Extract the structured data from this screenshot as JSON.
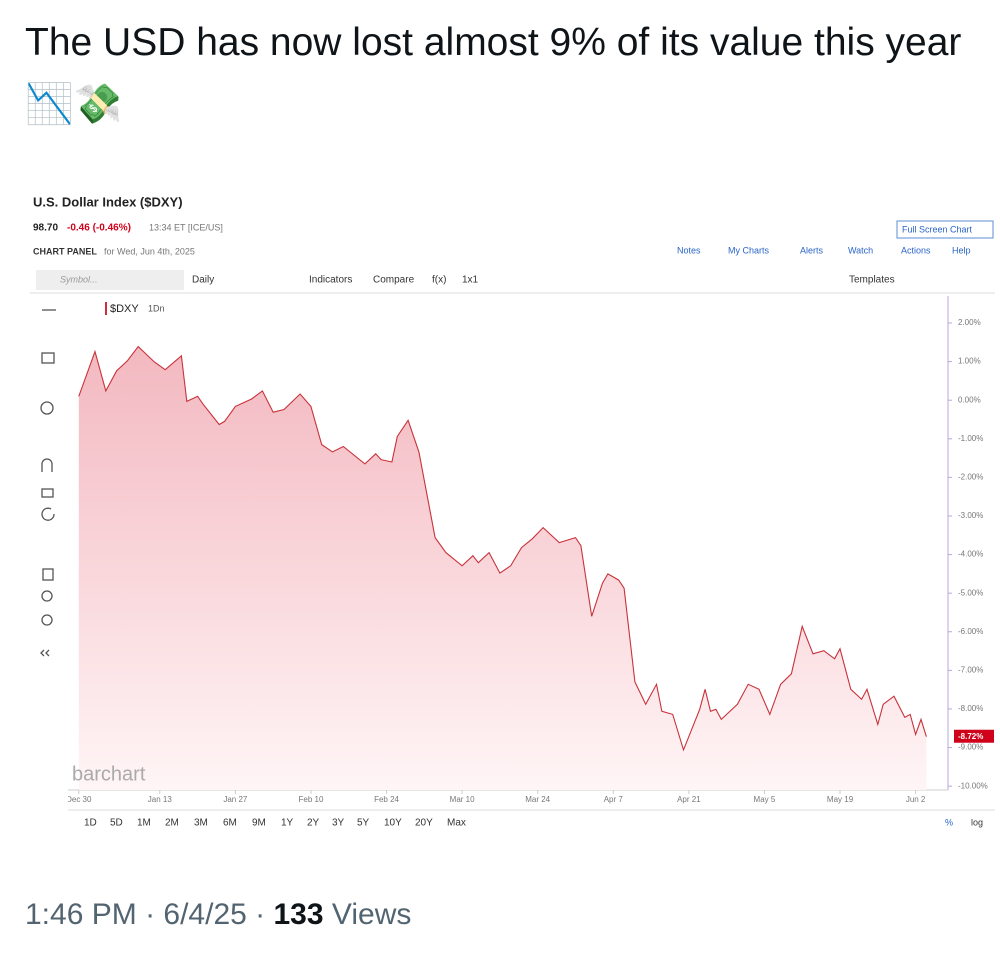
{
  "tweet": {
    "text": "The USD has now lost almost 9% of its value this year 📉💸",
    "time": "1:46 PM",
    "date": "6/4/25",
    "views": "133",
    "views_label": "Views"
  },
  "panel": {
    "title": "U.S. Dollar Index ($DXY)",
    "last": "98.70",
    "change": "-0.46 (-0.46%)",
    "timestamp": "13:34 ET [ICE/US]",
    "panel_label": "CHART PANEL",
    "panel_date": "for Wed, Jun 4th, 2025",
    "full_screen": "Full Screen Chart",
    "menu": [
      "Notes",
      "My Charts",
      "Alerts",
      "Watch",
      "Actions",
      "Help"
    ],
    "symbol_placeholder": "Symbol...",
    "toolbar": [
      "Daily",
      "Indicators",
      "Compare",
      "f(x)",
      "1x1"
    ],
    "templates": "Templates",
    "interval": "1Dn",
    "watermark": "barchart",
    "ranges": [
      "1D",
      "5D",
      "1M",
      "2M",
      "3M",
      "6M",
      "9M",
      "1Y",
      "2Y",
      "3Y",
      "5Y",
      "10Y",
      "20Y",
      "Max"
    ],
    "percent_toggle": "%",
    "log_toggle": "log"
  },
  "chart_data": {
    "type": "area",
    "x": [
      "Dec 30",
      "Jan 1",
      "Jan 3",
      "Jan 5",
      "Jan 7",
      "Jan 9",
      "Jan 12",
      "Jan 14",
      "Jan 17",
      "Jan 18",
      "Jan 20",
      "Jan 21",
      "Jan 24",
      "Jan 25",
      "Jan 27",
      "Jan 30",
      "Feb 1",
      "Feb 3",
      "Feb 5",
      "Feb 8",
      "Feb 10",
      "Feb 12",
      "Feb 14",
      "Feb 16",
      "Feb 20",
      "Feb 22",
      "Feb 23",
      "Feb 25",
      "Feb 26",
      "Feb 28",
      "Mar 2",
      "Mar 5",
      "Mar 7",
      "Mar 10",
      "Mar 12",
      "Mar 13",
      "Mar 15",
      "Mar 17",
      "Mar 19",
      "Mar 21",
      "Mar 23",
      "Mar 25",
      "Mar 28",
      "Mar 31",
      "Apr 1",
      "Apr 3",
      "Apr 5",
      "Apr 6",
      "Apr 8",
      "Apr 9",
      "Apr 11",
      "Apr 13",
      "Apr 15",
      "Apr 16",
      "Apr 18",
      "Apr 20",
      "Apr 23",
      "Apr 24",
      "Apr 25",
      "Apr 26",
      "Apr 27",
      "Apr 30",
      "May 2",
      "May 4",
      "May 6",
      "May 8",
      "May 10",
      "May 12",
      "May 14",
      "May 16",
      "May 18",
      "May 19",
      "May 21",
      "May 23",
      "May 24",
      "May 26",
      "May 27",
      "May 29",
      "May 31",
      "Jun 1",
      "Jun 2",
      "Jun 3",
      "Jun 4"
    ],
    "series": [
      {
        "name": "$DXY",
        "color": "#c8323a",
        "values": [
          0.1,
          1.26,
          0.24,
          0.76,
          1.02,
          1.39,
          0.99,
          0.79,
          1.15,
          -0.03,
          0.1,
          -0.1,
          -0.63,
          -0.55,
          -0.16,
          0.03,
          0.24,
          -0.31,
          -0.24,
          0.16,
          -0.16,
          -1.15,
          -1.34,
          -1.2,
          -1.65,
          -1.39,
          -1.54,
          -1.6,
          -0.94,
          -0.52,
          -1.34,
          -3.56,
          -3.95,
          -4.29,
          -4.03,
          -4.21,
          -3.95,
          -4.48,
          -4.29,
          -3.82,
          -3.59,
          -3.3,
          -3.69,
          -3.56,
          -3.77,
          -5.6,
          -4.74,
          -4.5,
          -4.66,
          -4.87,
          -7.3,
          -7.88,
          -7.36,
          -8.06,
          -8.14,
          -9.06,
          -8.01,
          -7.49,
          -8.06,
          -8.01,
          -8.27,
          -7.88,
          -7.36,
          -7.49,
          -8.14,
          -7.36,
          -7.09,
          -5.86,
          -6.57,
          -6.49,
          -6.7,
          -6.44,
          -7.49,
          -7.75,
          -7.49,
          -8.4,
          -7.88,
          -7.67,
          -8.22,
          -8.14,
          -8.66,
          -8.27,
          -8.72
        ]
      }
    ],
    "last_label": "-8.72%",
    "xlim": [
      "Dec 28",
      "Jun 8"
    ],
    "xticks": [
      "Dec 30",
      "Jan 13",
      "Jan 27",
      "Feb 10",
      "Feb 24",
      "Mar 10",
      "Mar 24",
      "Apr 7",
      "Apr 21",
      "May 5",
      "May 19",
      "Jun 2"
    ],
    "ylim": [
      -10.1,
      2.7
    ],
    "yticks": [
      {
        "value": 2,
        "label": "2.00%"
      },
      {
        "value": 1,
        "label": "1.00%"
      },
      {
        "value": 0,
        "label": "0.00%"
      },
      {
        "value": -1,
        "label": "-1.00%"
      },
      {
        "value": -2,
        "label": "-2.00%"
      },
      {
        "value": -3,
        "label": "-3.00%"
      },
      {
        "value": -4,
        "label": "-4.00%"
      },
      {
        "value": -5,
        "label": "-5.00%"
      },
      {
        "value": -6,
        "label": "-6.00%"
      },
      {
        "value": -7,
        "label": "-7.00%"
      },
      {
        "value": -8,
        "label": "-8.00%"
      },
      {
        "value": -9,
        "label": "-9.00%"
      },
      {
        "value": -10,
        "label": "-10.00%"
      }
    ],
    "grid": false
  }
}
